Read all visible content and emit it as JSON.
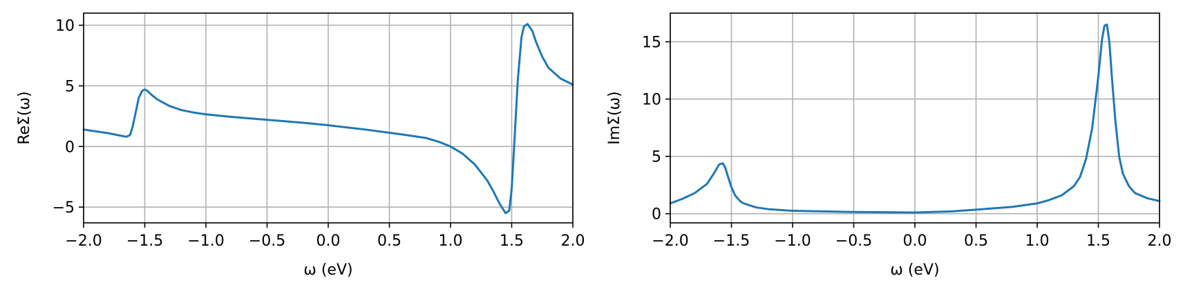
{
  "colors": {
    "series": "#1f77b4",
    "grid": "#b0b0b0"
  },
  "chart_data": [
    {
      "type": "line",
      "title": "",
      "xlabel": "ω (eV)",
      "ylabel": "ReΣ(ω)",
      "xlim": [
        -2.0,
        2.0
      ],
      "ylim": [
        -6.3,
        11.0
      ],
      "grid": true,
      "x_ticks": [
        -2.0,
        -1.5,
        -1.0,
        -0.5,
        0.0,
        0.5,
        1.0,
        1.5,
        2.0
      ],
      "x_tick_labels": [
        "−2.0",
        "−1.5",
        "−1.0",
        "−0.5",
        "0.0",
        "0.5",
        "1.0",
        "1.5",
        "2.0"
      ],
      "y_ticks": [
        -5,
        0,
        5,
        10
      ],
      "y_tick_labels": [
        "−5",
        "0",
        "5",
        "10"
      ],
      "series": [
        {
          "x": [
            -2.0,
            -1.9,
            -1.8,
            -1.7,
            -1.65,
            -1.62,
            -1.6,
            -1.57,
            -1.55,
            -1.52,
            -1.5,
            -1.48,
            -1.45,
            -1.4,
            -1.3,
            -1.2,
            -1.1,
            -1.0,
            -0.8,
            -0.5,
            -0.2,
            0.0,
            0.3,
            0.6,
            0.8,
            0.9,
            1.0,
            1.1,
            1.2,
            1.3,
            1.35,
            1.4,
            1.45,
            1.48,
            1.5,
            1.52,
            1.55,
            1.58,
            1.6,
            1.63,
            1.67,
            1.7,
            1.75,
            1.8,
            1.9,
            2.0
          ],
          "y": [
            1.4,
            1.25,
            1.1,
            0.9,
            0.8,
            0.95,
            1.6,
            3.0,
            4.0,
            4.6,
            4.7,
            4.6,
            4.3,
            3.9,
            3.35,
            3.0,
            2.8,
            2.65,
            2.45,
            2.2,
            1.95,
            1.75,
            1.4,
            1.0,
            0.7,
            0.4,
            0.0,
            -0.6,
            -1.5,
            -2.8,
            -3.7,
            -4.7,
            -5.5,
            -5.3,
            -3.5,
            0.0,
            5.5,
            9.0,
            9.9,
            10.1,
            9.5,
            8.6,
            7.4,
            6.5,
            5.6,
            5.1
          ]
        }
      ]
    },
    {
      "type": "line",
      "title": "",
      "xlabel": "ω (eV)",
      "ylabel": "ImΣ(ω)",
      "xlim": [
        -2.0,
        2.0
      ],
      "ylim": [
        -0.8,
        17.5
      ],
      "grid": true,
      "x_ticks": [
        -2.0,
        -1.5,
        -1.0,
        -0.5,
        0.0,
        0.5,
        1.0,
        1.5,
        2.0
      ],
      "x_tick_labels": [
        "−2.0",
        "−1.5",
        "−1.0",
        "−0.5",
        "0.0",
        "0.5",
        "1.0",
        "1.5",
        "2.0"
      ],
      "y_ticks": [
        0,
        5,
        10,
        15
      ],
      "y_tick_labels": [
        "0",
        "5",
        "10",
        "15"
      ],
      "series": [
        {
          "x": [
            -2.0,
            -1.9,
            -1.8,
            -1.7,
            -1.65,
            -1.6,
            -1.57,
            -1.55,
            -1.53,
            -1.5,
            -1.47,
            -1.43,
            -1.4,
            -1.3,
            -1.2,
            -1.0,
            -0.5,
            0.0,
            0.3,
            0.5,
            0.8,
            1.0,
            1.1,
            1.2,
            1.3,
            1.35,
            1.4,
            1.45,
            1.5,
            1.53,
            1.55,
            1.57,
            1.59,
            1.61,
            1.64,
            1.67,
            1.7,
            1.75,
            1.8,
            1.9,
            2.0
          ],
          "y": [
            0.9,
            1.3,
            1.8,
            2.6,
            3.4,
            4.3,
            4.4,
            4.0,
            3.3,
            2.3,
            1.6,
            1.1,
            0.9,
            0.55,
            0.4,
            0.25,
            0.15,
            0.1,
            0.2,
            0.35,
            0.6,
            0.9,
            1.2,
            1.6,
            2.4,
            3.2,
            4.8,
            7.5,
            12.0,
            15.2,
            16.4,
            16.5,
            15.0,
            12.0,
            8.0,
            5.0,
            3.5,
            2.4,
            1.8,
            1.35,
            1.1
          ]
        }
      ]
    }
  ]
}
